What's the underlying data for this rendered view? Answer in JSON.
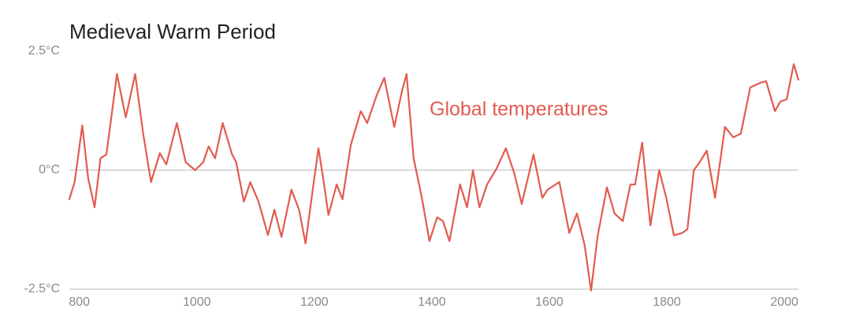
{
  "chart_data": {
    "type": "line",
    "title": "Medieval Warm Period",
    "annotation": "Global temperatures",
    "x": [
      783,
      792,
      805,
      815,
      826,
      836,
      846,
      854,
      864,
      879,
      895,
      909,
      922,
      937,
      948,
      966,
      981,
      997,
      1011,
      1020,
      1031,
      1044,
      1060,
      1067,
      1080,
      1091,
      1105,
      1121,
      1132,
      1144,
      1161,
      1174,
      1185,
      1199,
      1207,
      1215,
      1224,
      1238,
      1248,
      1262,
      1279,
      1290,
      1306,
      1319,
      1336,
      1349,
      1357,
      1369,
      1383,
      1396,
      1409,
      1419,
      1430,
      1448,
      1460,
      1470,
      1481,
      1494,
      1510,
      1526,
      1540,
      1553,
      1573,
      1588,
      1597,
      1617,
      1634,
      1647,
      1660,
      1671,
      1682,
      1698,
      1711,
      1725,
      1738,
      1746,
      1758,
      1772,
      1787,
      1799,
      1812,
      1826,
      1835,
      1846,
      1856,
      1868,
      1882,
      1899,
      1913,
      1926,
      1942,
      1960,
      1969,
      1984,
      1993,
      2004,
      2016,
      2024
    ],
    "series": [
      {
        "name": "Global temperatures",
        "color": "#e25b4f",
        "values": [
          -0.61,
          -0.25,
          0.94,
          -0.17,
          -0.78,
          0.25,
          0.33,
          1.07,
          2.02,
          1.11,
          2.02,
          0.74,
          -0.25,
          0.36,
          0.12,
          0.99,
          0.17,
          0,
          0.17,
          0.5,
          0.25,
          0.99,
          0.33,
          0.17,
          -0.66,
          -0.25,
          -0.66,
          -1.36,
          -0.83,
          -1.4,
          -0.41,
          -0.83,
          -1.54,
          -0.25,
          0.46,
          -0.17,
          -0.94,
          -0.3,
          -0.61,
          0.53,
          1.24,
          0.99,
          1.57,
          1.94,
          0.91,
          1.65,
          2.02,
          0.25,
          -0.58,
          -1.49,
          -0.99,
          -1.07,
          -1.49,
          -0.3,
          -0.78,
          0,
          -0.78,
          -0.3,
          0.03,
          0.46,
          -0.05,
          -0.71,
          0.33,
          -0.58,
          -0.41,
          -0.25,
          -1.32,
          -0.91,
          -1.57,
          -2.53,
          -1.4,
          -0.36,
          -0.91,
          -1.07,
          -0.3,
          -0.3,
          0.58,
          -1.16,
          0,
          -0.58,
          -1.37,
          -1.32,
          -1.24,
          0,
          0.17,
          0.41,
          -0.58,
          0.91,
          0.69,
          0.77,
          1.74,
          1.84,
          1.87,
          1.24,
          1.44,
          1.49,
          2.23,
          1.9
        ]
      }
    ],
    "xlim": [
      783,
      2024
    ],
    "xticks": [
      800,
      1000,
      1200,
      1400,
      1600,
      1800,
      2000
    ],
    "ylim": [
      -2.5,
      2.5
    ],
    "yticks": [
      {
        "value": -2.5,
        "label": "-2.5°C"
      },
      {
        "value": 0,
        "label": "0°C"
      },
      {
        "value": 2.5,
        "label": "2.5°C"
      }
    ]
  }
}
